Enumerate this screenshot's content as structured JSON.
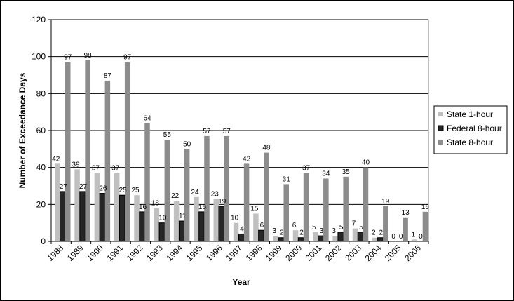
{
  "chart_data": {
    "type": "bar",
    "title": "",
    "xlabel": "Year",
    "ylabel": "Number of Exceedance Days",
    "ylim": [
      0,
      120
    ],
    "yticks": [
      0,
      20,
      40,
      60,
      80,
      100,
      120
    ],
    "grid": true,
    "legend_position": "right",
    "categories": [
      "1988",
      "1989",
      "1990",
      "1991",
      "1992",
      "1993",
      "1994",
      "1995",
      "1996",
      "1997",
      "1998",
      "1999",
      "2000",
      "2001",
      "2002",
      "2003",
      "2004",
      "2005",
      "2006"
    ],
    "series": [
      {
        "name": "State 1-hour",
        "color": "#c0c0c0",
        "values": [
          42,
          39,
          37,
          37,
          25,
          18,
          22,
          24,
          23,
          10,
          15,
          3,
          6,
          5,
          3,
          7,
          2,
          0,
          1
        ]
      },
      {
        "name": "Federal 8-hour",
        "color": "#262626",
        "values": [
          27,
          27,
          26,
          25,
          16,
          10,
          11,
          16,
          19,
          4,
          6,
          2,
          2,
          3,
          5,
          5,
          2,
          0,
          0
        ]
      },
      {
        "name": "State 8-hour",
        "color": "#8c8c8c",
        "values": [
          97,
          98,
          87,
          97,
          64,
          55,
          50,
          57,
          57,
          42,
          48,
          31,
          37,
          34,
          35,
          40,
          19,
          13,
          16
        ]
      }
    ]
  }
}
